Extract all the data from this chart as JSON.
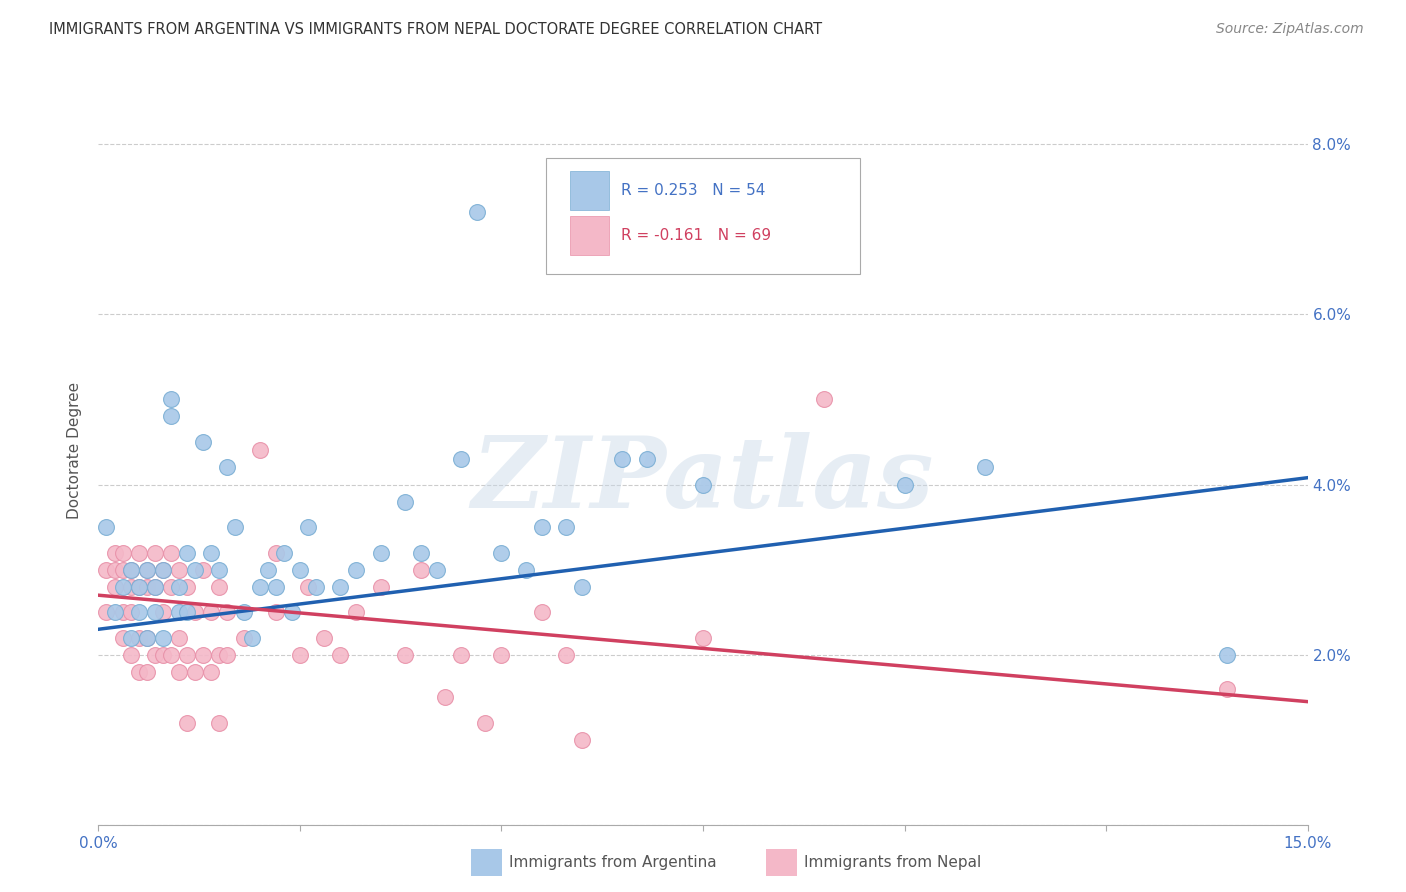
{
  "title": "IMMIGRANTS FROM ARGENTINA VS IMMIGRANTS FROM NEPAL DOCTORATE DEGREE CORRELATION CHART",
  "source": "Source: ZipAtlas.com",
  "ylabel": "Doctorate Degree",
  "xlim": [
    0.0,
    0.15
  ],
  "ylim": [
    0.0,
    0.088
  ],
  "yticks": [
    0.0,
    0.02,
    0.04,
    0.06,
    0.08
  ],
  "ytick_labels": [
    "",
    "2.0%",
    "4.0%",
    "6.0%",
    "8.0%"
  ],
  "legend_labels": [
    "Immigrants from Argentina",
    "Immigrants from Nepal"
  ],
  "legend_R_blue": "R = 0.253",
  "legend_N_blue": "N = 54",
  "legend_R_pink": "R = -0.161",
  "legend_N_pink": "N = 69",
  "blue_color": "#a8c8e8",
  "pink_color": "#f4b8c8",
  "blue_edge": "#7aaed4",
  "pink_edge": "#e890a8",
  "blue_line_color": "#2060b0",
  "pink_line_color": "#d04060",
  "blue_scatter": [
    [
      0.001,
      0.035
    ],
    [
      0.002,
      0.025
    ],
    [
      0.003,
      0.028
    ],
    [
      0.004,
      0.022
    ],
    [
      0.004,
      0.03
    ],
    [
      0.005,
      0.028
    ],
    [
      0.005,
      0.025
    ],
    [
      0.006,
      0.022
    ],
    [
      0.006,
      0.03
    ],
    [
      0.007,
      0.025
    ],
    [
      0.007,
      0.028
    ],
    [
      0.008,
      0.03
    ],
    [
      0.008,
      0.022
    ],
    [
      0.009,
      0.048
    ],
    [
      0.009,
      0.05
    ],
    [
      0.01,
      0.028
    ],
    [
      0.01,
      0.025
    ],
    [
      0.011,
      0.032
    ],
    [
      0.011,
      0.025
    ],
    [
      0.012,
      0.03
    ],
    [
      0.013,
      0.045
    ],
    [
      0.014,
      0.032
    ],
    [
      0.015,
      0.03
    ],
    [
      0.016,
      0.042
    ],
    [
      0.017,
      0.035
    ],
    [
      0.018,
      0.025
    ],
    [
      0.019,
      0.022
    ],
    [
      0.02,
      0.028
    ],
    [
      0.021,
      0.03
    ],
    [
      0.022,
      0.028
    ],
    [
      0.023,
      0.032
    ],
    [
      0.024,
      0.025
    ],
    [
      0.025,
      0.03
    ],
    [
      0.026,
      0.035
    ],
    [
      0.027,
      0.028
    ],
    [
      0.03,
      0.028
    ],
    [
      0.032,
      0.03
    ],
    [
      0.035,
      0.032
    ],
    [
      0.038,
      0.038
    ],
    [
      0.04,
      0.032
    ],
    [
      0.042,
      0.03
    ],
    [
      0.045,
      0.043
    ],
    [
      0.047,
      0.072
    ],
    [
      0.05,
      0.032
    ],
    [
      0.053,
      0.03
    ],
    [
      0.055,
      0.035
    ],
    [
      0.058,
      0.035
    ],
    [
      0.06,
      0.028
    ],
    [
      0.065,
      0.043
    ],
    [
      0.068,
      0.043
    ],
    [
      0.075,
      0.04
    ],
    [
      0.1,
      0.04
    ],
    [
      0.11,
      0.042
    ],
    [
      0.14,
      0.02
    ]
  ],
  "pink_scatter": [
    [
      0.001,
      0.03
    ],
    [
      0.001,
      0.025
    ],
    [
      0.002,
      0.032
    ],
    [
      0.002,
      0.03
    ],
    [
      0.002,
      0.028
    ],
    [
      0.003,
      0.032
    ],
    [
      0.003,
      0.03
    ],
    [
      0.003,
      0.025
    ],
    [
      0.003,
      0.022
    ],
    [
      0.004,
      0.03
    ],
    [
      0.004,
      0.028
    ],
    [
      0.004,
      0.025
    ],
    [
      0.004,
      0.02
    ],
    [
      0.005,
      0.032
    ],
    [
      0.005,
      0.028
    ],
    [
      0.005,
      0.022
    ],
    [
      0.005,
      0.018
    ],
    [
      0.006,
      0.03
    ],
    [
      0.006,
      0.028
    ],
    [
      0.006,
      0.022
    ],
    [
      0.006,
      0.018
    ],
    [
      0.007,
      0.032
    ],
    [
      0.007,
      0.028
    ],
    [
      0.007,
      0.02
    ],
    [
      0.008,
      0.03
    ],
    [
      0.008,
      0.025
    ],
    [
      0.008,
      0.02
    ],
    [
      0.009,
      0.032
    ],
    [
      0.009,
      0.028
    ],
    [
      0.009,
      0.02
    ],
    [
      0.01,
      0.03
    ],
    [
      0.01,
      0.022
    ],
    [
      0.01,
      0.018
    ],
    [
      0.011,
      0.028
    ],
    [
      0.011,
      0.02
    ],
    [
      0.011,
      0.012
    ],
    [
      0.012,
      0.025
    ],
    [
      0.012,
      0.018
    ],
    [
      0.013,
      0.03
    ],
    [
      0.013,
      0.02
    ],
    [
      0.014,
      0.025
    ],
    [
      0.014,
      0.018
    ],
    [
      0.015,
      0.028
    ],
    [
      0.015,
      0.02
    ],
    [
      0.015,
      0.012
    ],
    [
      0.016,
      0.025
    ],
    [
      0.016,
      0.02
    ],
    [
      0.018,
      0.022
    ],
    [
      0.02,
      0.044
    ],
    [
      0.022,
      0.032
    ],
    [
      0.022,
      0.025
    ],
    [
      0.025,
      0.02
    ],
    [
      0.026,
      0.028
    ],
    [
      0.028,
      0.022
    ],
    [
      0.03,
      0.02
    ],
    [
      0.032,
      0.025
    ],
    [
      0.035,
      0.028
    ],
    [
      0.038,
      0.02
    ],
    [
      0.04,
      0.03
    ],
    [
      0.043,
      0.015
    ],
    [
      0.045,
      0.02
    ],
    [
      0.048,
      0.012
    ],
    [
      0.05,
      0.02
    ],
    [
      0.055,
      0.025
    ],
    [
      0.058,
      0.02
    ],
    [
      0.06,
      0.01
    ],
    [
      0.075,
      0.022
    ],
    [
      0.09,
      0.05
    ],
    [
      0.14,
      0.016
    ]
  ],
  "blue_line": {
    "x0": 0.0,
    "y0": 0.023,
    "x1": 0.15,
    "y1": 0.0408
  },
  "pink_line": {
    "x0": 0.0,
    "y0": 0.027,
    "x1": 0.15,
    "y1": 0.0145
  },
  "watermark": "ZIPatlas",
  "background_color": "#ffffff",
  "grid_color": "#cccccc",
  "title_color": "#333333",
  "axis_label_color": "#4472c4",
  "text_color": "#555555"
}
